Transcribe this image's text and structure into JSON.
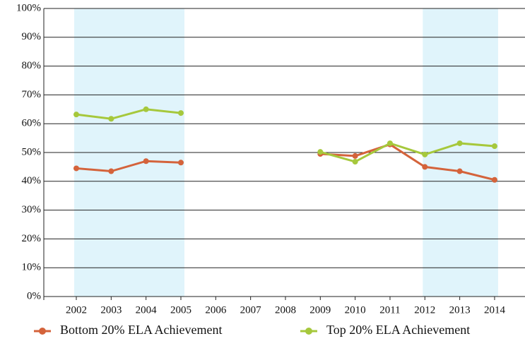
{
  "chart_data": {
    "type": "line",
    "categories": [
      "2002",
      "2003",
      "2004",
      "2005",
      "2006",
      "2007",
      "2008",
      "2009",
      "2010",
      "2011",
      "2012",
      "2013",
      "2014"
    ],
    "series": [
      {
        "name": "Bottom 20% ELA Achievement",
        "color": "#d4633b",
        "values": [
          44.5,
          43.5,
          47,
          46.5,
          null,
          null,
          null,
          49.5,
          48.8,
          52.8,
          45,
          43.5,
          40.5
        ]
      },
      {
        "name": "Top 20% ELA Achievement",
        "color": "#a6c83c",
        "values": [
          63.2,
          61.7,
          65,
          63.7,
          null,
          null,
          null,
          50.2,
          46.8,
          53.2,
          49.3,
          53.2,
          52.2
        ]
      }
    ],
    "ylim": [
      0,
      100
    ],
    "yticks": [
      {
        "value": 0,
        "label": "0%"
      },
      {
        "value": 10,
        "label": "10%"
      },
      {
        "value": 20,
        "label": "20%"
      },
      {
        "value": 30,
        "label": "30%"
      },
      {
        "value": 40,
        "label": "40%"
      },
      {
        "value": 50,
        "label": "50%"
      },
      {
        "value": 60,
        "label": "60%"
      },
      {
        "value": 70,
        "label": "70%"
      },
      {
        "value": 80,
        "label": "80%"
      },
      {
        "value": 90,
        "label": "90%"
      },
      {
        "value": 100,
        "label": "100%"
      }
    ],
    "grid": true,
    "legend": "bottom",
    "shaded": [
      {
        "from": "2002",
        "to": "2005",
        "color": "#e0f4fb"
      },
      {
        "from": "2012",
        "to": "2014",
        "color": "#e0f4fb"
      }
    ]
  }
}
